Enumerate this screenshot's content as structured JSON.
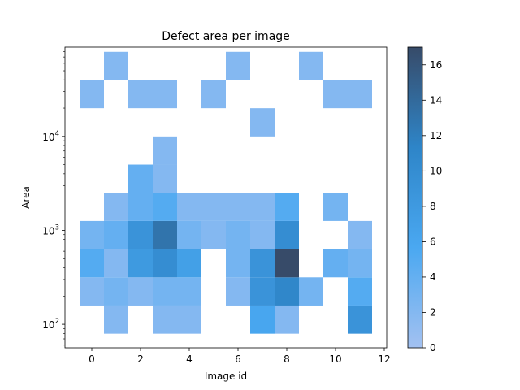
{
  "chart_data": {
    "type": "heatmap",
    "title": "Defect area per image",
    "xlabel": "Image id",
    "ylabel": "Area",
    "x_bin_start": -0.5,
    "x_bin_width": 1,
    "x_bin_count": 12,
    "y_scale": "log",
    "y_bin_edges": [
      "10^1.9",
      "10^2.2",
      "10^2.5",
      "10^2.8",
      "10^3.1",
      "10^3.4",
      "10^3.7",
      "10^4.0",
      "10^4.3",
      "10^4.6",
      "10^4.9"
    ],
    "y_bin_log_start": 1.9,
    "y_bin_log_width": 0.3,
    "xlim": [
      -1.1,
      12.1
    ],
    "ylim_log10": [
      1.75,
      4.95
    ],
    "xticks": [
      "0",
      "2",
      "4",
      "6",
      "8",
      "10",
      "12"
    ],
    "xtick_values": [
      0,
      2,
      4,
      6,
      8,
      10,
      12
    ],
    "yticks": [
      "10^2",
      "10^3",
      "10^4"
    ],
    "ytick_values": [
      2,
      3,
      4
    ],
    "colorbar": {
      "min": 0,
      "max": 17,
      "ticks": [
        "0",
        "2",
        "4",
        "6",
        "8",
        "10",
        "12",
        "14",
        "16"
      ],
      "tick_values": [
        0,
        2,
        4,
        6,
        8,
        10,
        12,
        14,
        16
      ],
      "colors": [
        "#a3c1f1",
        "#4aa8f1",
        "#2e85c8",
        "#374b69"
      ]
    },
    "counts": [
      [
        0,
        2,
        0,
        2,
        2,
        0,
        0,
        6,
        2,
        0,
        0,
        9
      ],
      [
        2,
        3,
        2,
        3,
        3,
        0,
        2,
        9,
        11,
        3,
        0,
        5
      ],
      [
        5,
        2,
        8,
        10,
        7,
        0,
        3,
        9,
        17,
        0,
        4,
        3
      ],
      [
        3,
        4,
        9,
        13,
        3,
        2,
        3,
        2,
        10,
        0,
        0,
        2
      ],
      [
        0,
        2,
        4,
        5,
        2,
        2,
        2,
        2,
        5,
        0,
        3,
        0
      ],
      [
        0,
        0,
        4,
        2,
        0,
        0,
        0,
        0,
        0,
        0,
        0,
        0
      ],
      [
        0,
        0,
        0,
        2,
        0,
        0,
        0,
        0,
        0,
        0,
        0,
        0
      ],
      [
        0,
        0,
        0,
        0,
        0,
        0,
        0,
        2,
        0,
        0,
        0,
        0
      ],
      [
        2,
        0,
        2,
        2,
        0,
        2,
        0,
        0,
        0,
        0,
        2,
        2
      ],
      [
        0,
        2,
        0,
        0,
        0,
        0,
        2,
        0,
        0,
        2,
        0,
        0
      ]
    ]
  }
}
